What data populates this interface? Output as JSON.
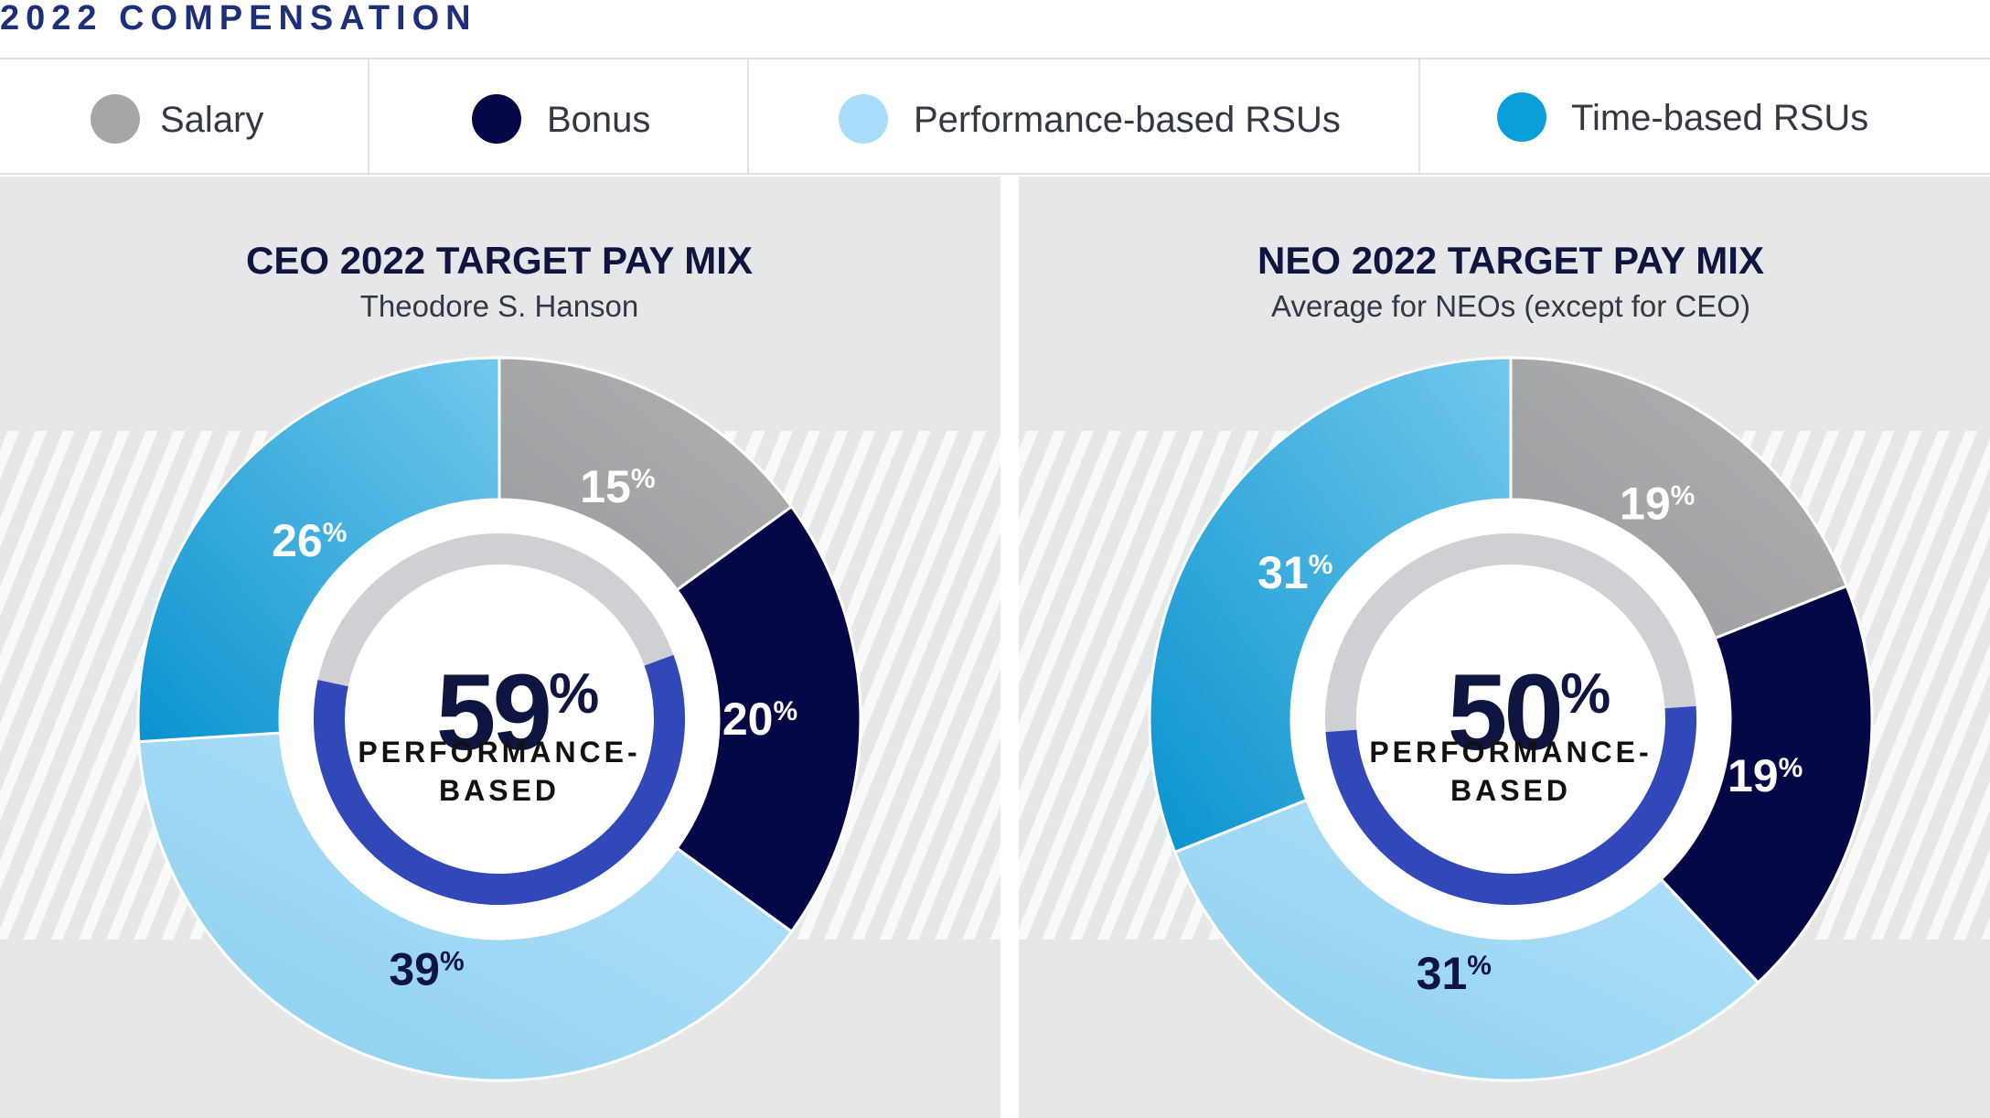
{
  "page": {
    "title": "2022 COMPENSATION"
  },
  "legend": [
    {
      "label": "Salary",
      "color": "#a5a6a8"
    },
    {
      "label": "Bonus",
      "color": "#050847"
    },
    {
      "label": "Performance-based RSUs",
      "color": "#a7ddfa"
    },
    {
      "label": "Time-based RSUs",
      "color": "#0b9fd8"
    }
  ],
  "colors": {
    "ring_gray": "#cfd0d3",
    "ring_blue": "#3048b8",
    "title": "#0d1540",
    "text": "#333842"
  },
  "chart_data": [
    {
      "type": "pie",
      "title": "CEO 2022 TARGET PAY MIX",
      "subtitle": "Theodore S. Hanson",
      "categories": [
        "Salary",
        "Bonus",
        "Performance-based RSUs",
        "Time-based RSUs"
      ],
      "values": [
        15,
        20,
        39,
        26
      ],
      "labels": [
        "15",
        "20",
        "39",
        "26"
      ],
      "percent_sign": "%",
      "center": {
        "value": "59",
        "sign": "%",
        "line1": "PERFORMANCE-",
        "line2": "BASED",
        "ring_fraction": 0.59
      }
    },
    {
      "type": "pie",
      "title": "NEO 2022 TARGET PAY MIX",
      "subtitle": "Average for NEOs (except for CEO)",
      "categories": [
        "Salary",
        "Bonus",
        "Performance-based RSUs",
        "Time-based RSUs"
      ],
      "values": [
        19,
        19,
        31,
        31
      ],
      "labels": [
        "19",
        "19",
        "31",
        "31"
      ],
      "percent_sign": "%",
      "center": {
        "value": "50",
        "sign": "%",
        "line1": "PERFORMANCE-",
        "line2": "BASED",
        "ring_fraction": 0.5
      }
    }
  ]
}
